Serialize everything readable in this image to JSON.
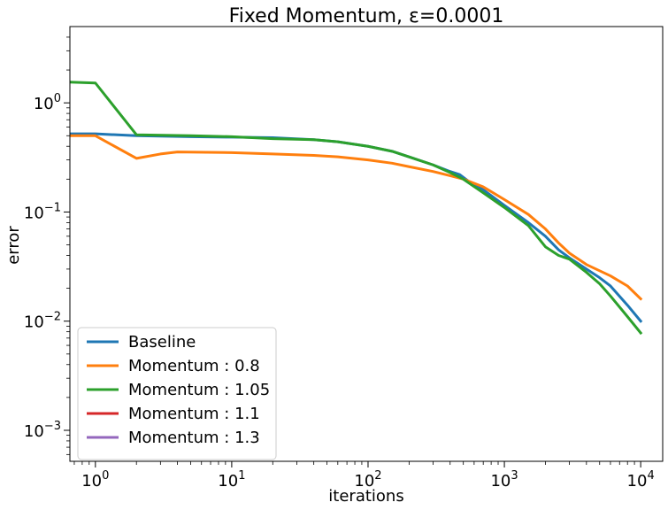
{
  "chart_data": {
    "type": "line",
    "title": "Fixed Momentum, ε=0.0001",
    "xlabel": "iterations",
    "ylabel": "error",
    "xscale": "log",
    "yscale": "log",
    "xlim": [
      0.65,
      14500
    ],
    "ylim": [
      0.00052,
      5
    ],
    "grid": false,
    "legend_position": "lower-left",
    "x_ticks": [
      {
        "value": 1,
        "base": "10",
        "exp": "0"
      },
      {
        "value": 10,
        "base": "10",
        "exp": "1"
      },
      {
        "value": 100,
        "base": "10",
        "exp": "2"
      },
      {
        "value": 1000,
        "base": "10",
        "exp": "3"
      },
      {
        "value": 10000,
        "base": "10",
        "exp": "4"
      }
    ],
    "y_ticks": [
      {
        "value": 1,
        "base": "10",
        "exp": "0"
      },
      {
        "value": 0.1,
        "base": "10",
        "exp": "−1"
      },
      {
        "value": 0.01,
        "base": "10",
        "exp": "−2"
      },
      {
        "value": 0.001,
        "base": "10",
        "exp": "−3"
      }
    ],
    "series": [
      {
        "name": "Baseline",
        "color": "#1f77b4",
        "points": [
          [
            0.65,
            0.52
          ],
          [
            1,
            0.52
          ],
          [
            2,
            0.5
          ],
          [
            5,
            0.49
          ],
          [
            10,
            0.485
          ],
          [
            20,
            0.48
          ],
          [
            40,
            0.46
          ],
          [
            60,
            0.44
          ],
          [
            100,
            0.4
          ],
          [
            150,
            0.36
          ],
          [
            200,
            0.32
          ],
          [
            300,
            0.27
          ],
          [
            400,
            0.235
          ],
          [
            470,
            0.22
          ],
          [
            550,
            0.19
          ],
          [
            700,
            0.16
          ],
          [
            1000,
            0.115
          ],
          [
            1500,
            0.08
          ],
          [
            2000,
            0.06
          ],
          [
            2500,
            0.045
          ],
          [
            3000,
            0.038
          ],
          [
            4000,
            0.03
          ],
          [
            5000,
            0.025
          ],
          [
            6000,
            0.021
          ],
          [
            8000,
            0.014
          ],
          [
            10000,
            0.01
          ]
        ]
      },
      {
        "name": "Momentum : 0.8",
        "color": "#ff7f0e",
        "points": [
          [
            0.65,
            0.5
          ],
          [
            1,
            0.5
          ],
          [
            2,
            0.31
          ],
          [
            3,
            0.34
          ],
          [
            4,
            0.355
          ],
          [
            10,
            0.35
          ],
          [
            20,
            0.34
          ],
          [
            40,
            0.33
          ],
          [
            60,
            0.32
          ],
          [
            100,
            0.3
          ],
          [
            150,
            0.28
          ],
          [
            200,
            0.26
          ],
          [
            300,
            0.235
          ],
          [
            400,
            0.215
          ],
          [
            500,
            0.2
          ],
          [
            700,
            0.17
          ],
          [
            1000,
            0.13
          ],
          [
            1500,
            0.095
          ],
          [
            2000,
            0.07
          ],
          [
            2500,
            0.052
          ],
          [
            3000,
            0.042
          ],
          [
            4000,
            0.033
          ],
          [
            6000,
            0.026
          ],
          [
            8000,
            0.021
          ],
          [
            10000,
            0.016
          ]
        ]
      },
      {
        "name": "Momentum : 1.05",
        "color": "#2ca02c",
        "points": [
          [
            0.65,
            1.55
          ],
          [
            1,
            1.52
          ],
          [
            2,
            0.51
          ],
          [
            5,
            0.5
          ],
          [
            10,
            0.49
          ],
          [
            20,
            0.47
          ],
          [
            40,
            0.46
          ],
          [
            60,
            0.44
          ],
          [
            100,
            0.4
          ],
          [
            150,
            0.36
          ],
          [
            200,
            0.32
          ],
          [
            300,
            0.27
          ],
          [
            400,
            0.23
          ],
          [
            500,
            0.2
          ],
          [
            700,
            0.15
          ],
          [
            1000,
            0.11
          ],
          [
            1500,
            0.075
          ],
          [
            2000,
            0.048
          ],
          [
            2500,
            0.04
          ],
          [
            3000,
            0.037
          ],
          [
            4000,
            0.028
          ],
          [
            5000,
            0.022
          ],
          [
            6000,
            0.017
          ],
          [
            8000,
            0.011
          ],
          [
            10000,
            0.0078
          ]
        ]
      },
      {
        "name": "Momentum : 1.1",
        "color": "#d62728",
        "points": []
      },
      {
        "name": "Momentum : 1.3",
        "color": "#9467bd",
        "points": []
      }
    ]
  }
}
